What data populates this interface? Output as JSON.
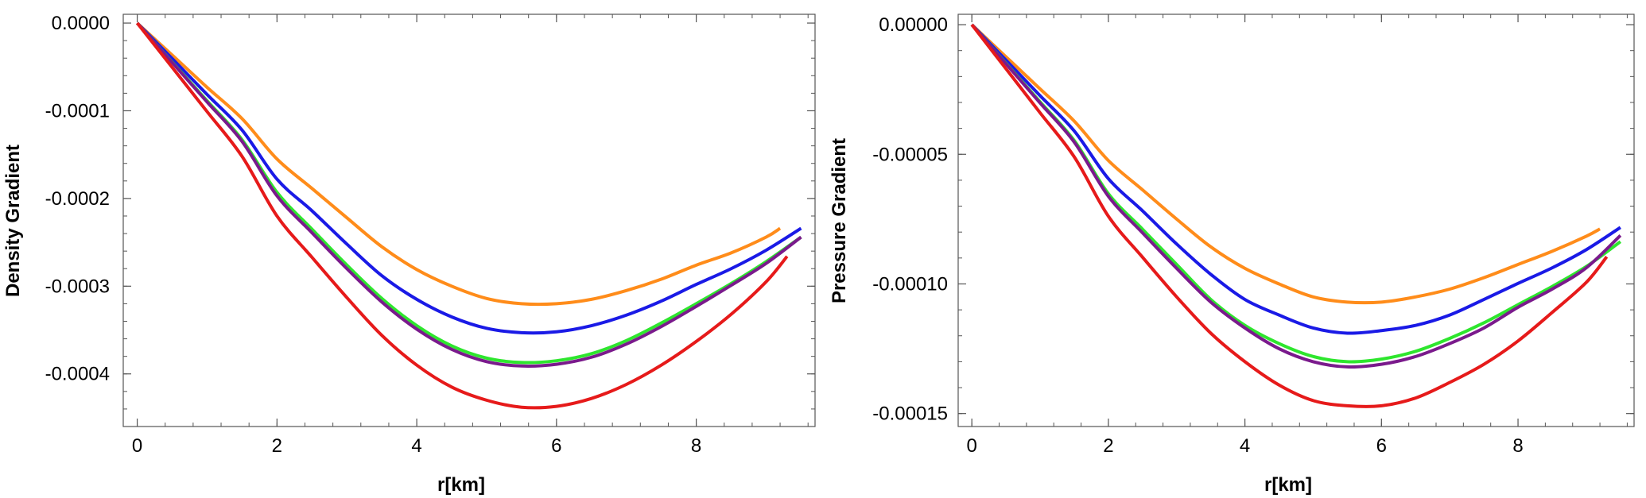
{
  "chart_data": [
    {
      "type": "line",
      "title": "",
      "xlabel": "r[km]",
      "ylabel": "Density Gradient",
      "xlim": [
        -0.2,
        9.7
      ],
      "ylim": [
        -0.00046,
        1e-05
      ],
      "xticks": [
        0,
        2,
        4,
        6,
        8
      ],
      "xtick_labels": [
        "0",
        "2",
        "4",
        "6",
        "8"
      ],
      "yticks": [
        0,
        -0.0001,
        -0.0002,
        -0.0003,
        -0.0004
      ],
      "ytick_labels": [
        "0.0000",
        "-0.0001",
        "-0.0002",
        "-0.0003",
        "-0.0004"
      ],
      "series": [
        {
          "name": "orange",
          "color": "#FF8C1A",
          "x": [
            0,
            0.5,
            1,
            1.5,
            2,
            2.5,
            3,
            3.5,
            4,
            4.5,
            5,
            5.5,
            6,
            6.5,
            7,
            7.5,
            8,
            8.5,
            9,
            9.2
          ],
          "y": [
            0,
            -3.65e-05,
            -7.33e-05,
            -0.000109,
            -0.000155,
            -0.0001885,
            -0.000222,
            -0.000255,
            -0.000281,
            -0.0003,
            -0.000314,
            -0.00032,
            -0.00032,
            -0.000315,
            -0.000305,
            -0.000292,
            -0.000276,
            -0.000262,
            -0.000244,
            -0.000234
          ]
        },
        {
          "name": "blue",
          "color": "#1A1AE6",
          "x": [
            0,
            0.5,
            1,
            1.5,
            2,
            2.5,
            3,
            3.5,
            4,
            4.5,
            5,
            5.5,
            6,
            6.5,
            7,
            7.5,
            8,
            8.5,
            9,
            9.5
          ],
          "y": [
            0,
            -4.05e-05,
            -8.15e-05,
            -0.000122,
            -0.000178,
            -0.000214,
            -0.000252,
            -0.000288,
            -0.000315,
            -0.000335,
            -0.000348,
            -0.000353,
            -0.000352,
            -0.000345,
            -0.000333,
            -0.000317,
            -0.000298,
            -0.00028,
            -0.000259,
            -0.000234
          ]
        },
        {
          "name": "green",
          "color": "#2EE62E",
          "x": [
            0,
            0.5,
            1,
            1.5,
            2,
            2.5,
            3,
            3.5,
            4,
            4.5,
            5,
            5.5,
            6,
            6.5,
            7,
            7.5,
            8,
            8.5,
            9,
            9.5
          ],
          "y": [
            0,
            -4.45e-05,
            -8.87e-05,
            -0.000133,
            -0.000193,
            -0.000235,
            -0.000276,
            -0.000314,
            -0.000345,
            -0.000368,
            -0.000382,
            -0.000387,
            -0.000385,
            -0.000377,
            -0.000362,
            -0.000342,
            -0.00032,
            -0.000297,
            -0.000272,
            -0.000244
          ]
        },
        {
          "name": "purple",
          "color": "#7A1A8C",
          "x": [
            0,
            0.5,
            1,
            1.5,
            2,
            2.5,
            3,
            3.5,
            4,
            4.5,
            5,
            5.5,
            6,
            6.5,
            7,
            7.5,
            8,
            8.5,
            9,
            9.5
          ],
          "y": [
            0,
            -4.5e-05,
            -9e-05,
            -0.000135,
            -0.000197,
            -0.000239,
            -0.00028,
            -0.000318,
            -0.000349,
            -0.000372,
            -0.000386,
            -0.000391,
            -0.000389,
            -0.000381,
            -0.000366,
            -0.000346,
            -0.000323,
            -0.000299,
            -0.000274,
            -0.000244
          ]
        },
        {
          "name": "red",
          "color": "#E61A1A",
          "x": [
            0,
            0.5,
            1,
            1.5,
            2,
            2.5,
            3,
            3.5,
            4,
            4.5,
            5,
            5.5,
            6,
            6.5,
            7,
            7.5,
            8,
            8.5,
            9,
            9.3
          ],
          "y": [
            0,
            -5.05e-05,
            -0.000101,
            -0.000152,
            -0.00022,
            -0.000267,
            -0.000313,
            -0.000356,
            -0.00039,
            -0.000415,
            -0.00043,
            -0.000438,
            -0.000437,
            -0.000428,
            -0.000412,
            -0.00039,
            -0.000363,
            -0.000332,
            -0.000295,
            -0.000266
          ]
        }
      ]
    },
    {
      "type": "line",
      "title": "",
      "xlabel": "r[km]",
      "ylabel": "Pressure Gradient",
      "xlim": [
        -0.2,
        9.7
      ],
      "ylim": [
        -0.000155,
        4e-06
      ],
      "xticks": [
        0,
        2,
        4,
        6,
        8
      ],
      "xtick_labels": [
        "0",
        "2",
        "4",
        "6",
        "8"
      ],
      "yticks": [
        0,
        -5e-05,
        -0.0001,
        -0.00015
      ],
      "ytick_labels": [
        "0.00000",
        "-0.00005",
        "-0.00010",
        "-0.00015"
      ],
      "series": [
        {
          "name": "orange",
          "color": "#FF8C1A",
          "x": [
            0,
            0.5,
            1,
            1.5,
            2,
            2.5,
            3,
            3.5,
            4,
            4.5,
            5,
            5.5,
            6,
            6.5,
            7,
            7.5,
            8,
            8.5,
            9,
            9.2
          ],
          "y": [
            0,
            -1.24e-05,
            -2.48e-05,
            -3.72e-05,
            -5.24e-05,
            -6.37e-05,
            -7.5e-05,
            -8.57e-05,
            -9.4e-05,
            -0.0001,
            -0.000105,
            -0.000107,
            -0.000107,
            -0.000105,
            -0.000102,
            -9.76e-05,
            -9.25e-05,
            -8.74e-05,
            -8.16e-05,
            -7.88e-05
          ]
        },
        {
          "name": "blue",
          "color": "#1A1AE6",
          "x": [
            0,
            0.5,
            1,
            1.5,
            2,
            2.5,
            3,
            3.5,
            4,
            4.5,
            5,
            5.5,
            6,
            6.5,
            7,
            7.5,
            8,
            8.5,
            9,
            9.5
          ],
          "y": [
            0,
            -1.37e-05,
            -2.74e-05,
            -4.1e-05,
            -5.94e-05,
            -7.18e-05,
            -8.46e-05,
            -9.63e-05,
            -0.000106,
            -0.000112,
            -0.000117,
            -0.000119,
            -0.000118,
            -0.000116,
            -0.000112,
            -0.000106,
            -9.98e-05,
            -9.38e-05,
            -8.68e-05,
            -7.82e-05
          ]
        },
        {
          "name": "green",
          "color": "#2EE62E",
          "x": [
            0,
            0.5,
            1,
            1.5,
            2,
            2.5,
            3,
            3.5,
            4,
            4.5,
            5,
            5.5,
            6,
            6.5,
            7,
            7.5,
            8,
            8.5,
            9,
            9.5
          ],
          "y": [
            0,
            -1.49e-05,
            -2.98e-05,
            -4.47e-05,
            -6.52e-05,
            -7.89e-05,
            -9.25e-05,
            -0.000106,
            -0.000116,
            -0.000123,
            -0.000128,
            -0.00013,
            -0.000129,
            -0.000126,
            -0.000121,
            -0.000115,
            -0.000108,
            -0.000101,
            -9.33e-05,
            -8.37e-05
          ]
        },
        {
          "name": "purple",
          "color": "#7A1A8C",
          "x": [
            0,
            0.5,
            1,
            1.5,
            2,
            2.5,
            3,
            3.5,
            4,
            4.5,
            5,
            5.5,
            6,
            6.5,
            7,
            7.5,
            8,
            8.5,
            9,
            9.5
          ],
          "y": [
            0,
            -1.51e-05,
            -3.02e-05,
            -4.53e-05,
            -6.62e-05,
            -8.03e-05,
            -9.4e-05,
            -0.000107,
            -0.000117,
            -0.000125,
            -0.00013,
            -0.000132,
            -0.000131,
            -0.000128,
            -0.000123,
            -0.000117,
            -0.000109,
            -0.000102,
            -9.38e-05,
            -8.13e-05
          ]
        },
        {
          "name": "red",
          "color": "#E61A1A",
          "x": [
            0,
            0.5,
            1,
            1.5,
            2,
            2.5,
            3,
            3.5,
            4,
            4.5,
            5,
            5.5,
            6,
            6.5,
            7,
            7.5,
            8,
            8.5,
            9,
            9.3
          ],
          "y": [
            0,
            -1.7e-05,
            -3.4e-05,
            -5.1e-05,
            -7.39e-05,
            -8.97e-05,
            -0.000105,
            -0.000119,
            -0.00013,
            -0.000139,
            -0.000145,
            -0.000147,
            -0.000147,
            -0.000144,
            -0.000138,
            -0.000131,
            -0.000122,
            -0.000111,
            -9.94e-05,
            -8.95e-05
          ]
        }
      ]
    }
  ]
}
